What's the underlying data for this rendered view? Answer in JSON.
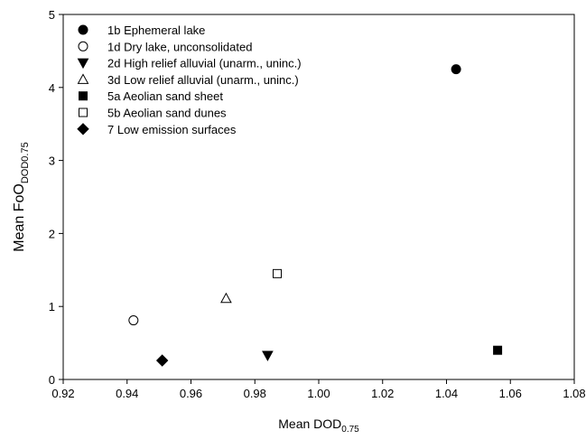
{
  "chart_data": {
    "type": "scatter",
    "xlabel": {
      "main": "Mean DOD",
      "sub": "0.75"
    },
    "ylabel": {
      "main": "Mean FoO",
      "sub": "DOD0.75"
    },
    "xlim": [
      0.92,
      1.08
    ],
    "ylim": [
      0,
      5
    ],
    "xticks": [
      "0.92",
      "0.94",
      "0.96",
      "0.98",
      "1.00",
      "1.02",
      "1.04",
      "1.06",
      "1.08"
    ],
    "yticks": [
      "0",
      "1",
      "2",
      "3",
      "4",
      "5"
    ],
    "grid": false,
    "legend_position": "top-left",
    "series": [
      {
        "name": "1b Ephemeral lake",
        "marker": "circle-filled",
        "x": 1.043,
        "y": 4.25
      },
      {
        "name": "1d Dry lake, unconsolidated",
        "marker": "circle-open",
        "x": 0.942,
        "y": 0.81
      },
      {
        "name": "2d High relief alluvial (unarm., uninc.)",
        "marker": "triangle-down-filled",
        "x": 0.984,
        "y": 0.33
      },
      {
        "name": "3d Low relief alluvial (unarm., uninc.)",
        "marker": "triangle-up-open",
        "x": 0.971,
        "y": 1.11
      },
      {
        "name": "5a Aeolian sand sheet",
        "marker": "square-filled",
        "x": 1.056,
        "y": 0.4
      },
      {
        "name": "5b Aeolian sand dunes",
        "marker": "square-open",
        "x": 0.987,
        "y": 1.45
      },
      {
        "name": "7 Low emission surfaces",
        "marker": "diamond-filled",
        "x": 0.951,
        "y": 0.26
      }
    ]
  }
}
